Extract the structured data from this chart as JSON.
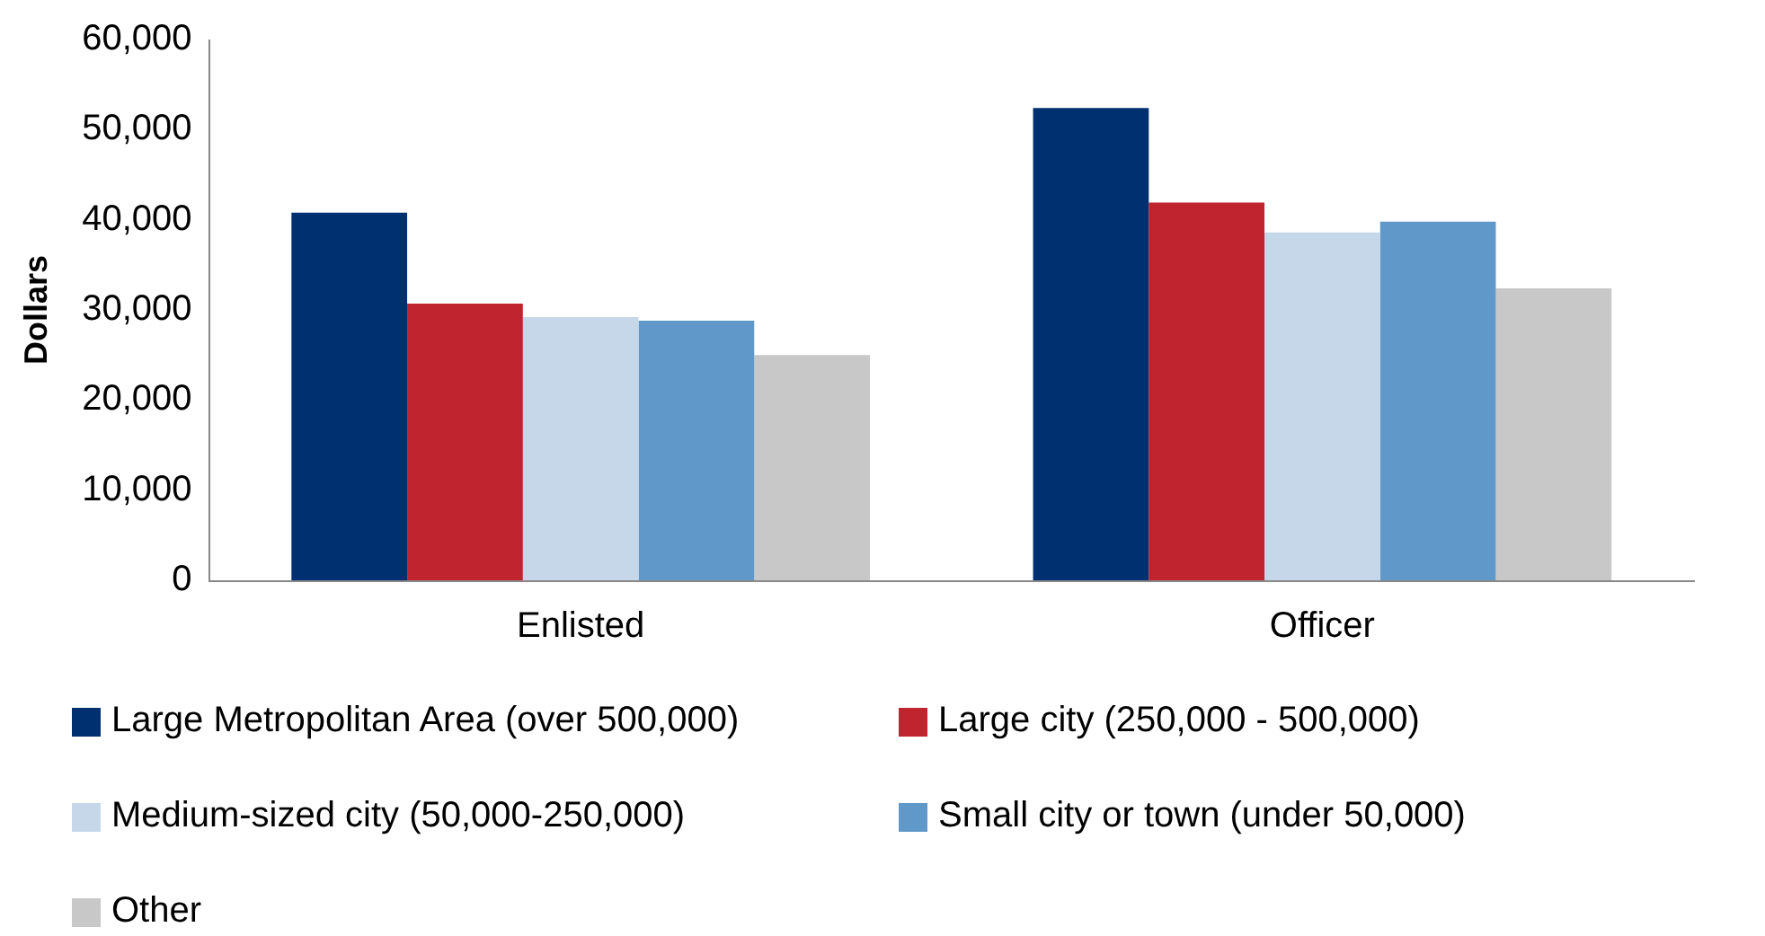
{
  "chart_data": {
    "type": "bar",
    "ylabel": "Dollars",
    "categories": [
      "Enlisted",
      "Officer"
    ],
    "series": [
      {
        "name": "Large Metropolitan Area (over 500,000)",
        "color": "#003070",
        "values": [
          40800,
          52400
        ]
      },
      {
        "name": "Large city (250,000 - 500,000)",
        "color": "#c0252f",
        "values": [
          30700,
          41900
        ]
      },
      {
        "name": "Medium-sized city (50,000-250,000)",
        "color": "#c5d7e8",
        "values": [
          29200,
          38600
        ]
      },
      {
        "name": "Small city or town (under 50,000)",
        "color": "#6099c9",
        "values": [
          28800,
          39800
        ]
      },
      {
        "name": "Other",
        "color": "#c8c8c8",
        "values": [
          25000,
          32400
        ]
      }
    ],
    "ylim": [
      0,
      60000
    ],
    "yticks": [
      0,
      {
        "value": 10000,
        "label": "10,000"
      },
      {
        "value": 20000,
        "label": "20,000"
      },
      {
        "value": 30000,
        "label": "30,000"
      },
      {
        "value": 40000,
        "label": "40,000"
      },
      {
        "value": 50000,
        "label": "50,000"
      },
      {
        "value": 60000,
        "label": "60,000"
      }
    ],
    "grid": false,
    "legend": "bottom"
  }
}
